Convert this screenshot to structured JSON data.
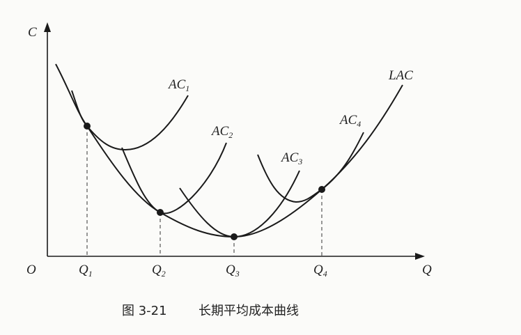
{
  "axes": {
    "y_label": "C",
    "origin": "O",
    "x_label": "Q"
  },
  "x_marks": [
    {
      "symbol": "Q",
      "subscript": "1"
    },
    {
      "symbol": "Q",
      "subscript": "2"
    },
    {
      "symbol": "Q",
      "subscript": "3"
    },
    {
      "symbol": "Q",
      "subscript": "4"
    }
  ],
  "curves": [
    {
      "symbol": "AC",
      "subscript": "1"
    },
    {
      "symbol": "AC",
      "subscript": "2"
    },
    {
      "symbol": "AC",
      "subscript": "3"
    },
    {
      "symbol": "AC",
      "subscript": "4"
    },
    {
      "symbol": "LAC"
    }
  ],
  "caption": {
    "number": "图 3-21",
    "title": "长期平均成本曲线"
  }
}
